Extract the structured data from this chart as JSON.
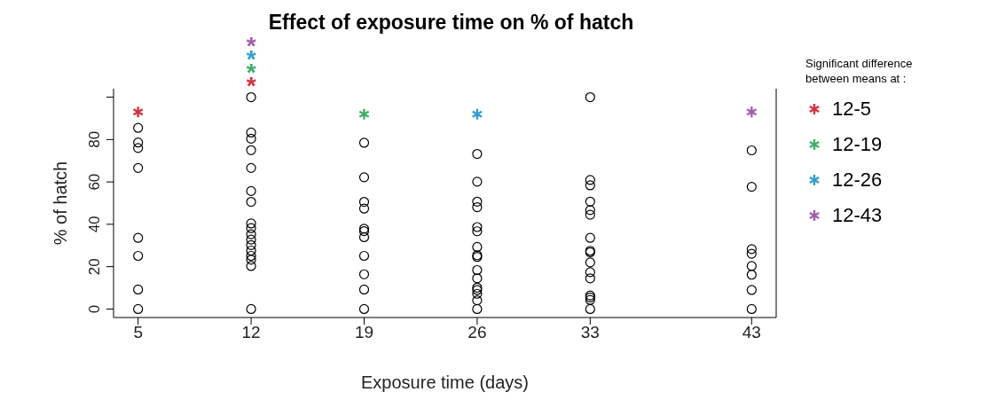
{
  "chart_data": {
    "type": "scatter",
    "title": "Effect of exposure time on % of hatch",
    "xlabel": "Exposure time (days)",
    "ylabel": "% of hatch",
    "legend_title": "Significant difference between means at :",
    "legend": "right",
    "grid": false,
    "xlim": [
      3.48,
      44.52
    ],
    "xticks": [
      5,
      12,
      19,
      26,
      33,
      43
    ],
    "ylim": [
      -4,
      104
    ],
    "yticks": [
      0,
      20,
      40,
      60,
      80,
      {
        "value": 100,
        "label": null
      }
    ],
    "series": [
      {
        "color": "#000000",
        "marker": "circle",
        "x": [
          5,
          5,
          5,
          5,
          5,
          5,
          5,
          5,
          12,
          12,
          12,
          12,
          12,
          12,
          12,
          12,
          12,
          12,
          12,
          12,
          12,
          12,
          12,
          12,
          12,
          19,
          19,
          19,
          19,
          19,
          19,
          19,
          19,
          19,
          19,
          19,
          26,
          26,
          26,
          26,
          26,
          26,
          26,
          26,
          26,
          26,
          26,
          26,
          26,
          26,
          26,
          26,
          33,
          33,
          33,
          33,
          33,
          33,
          33,
          33,
          33,
          33,
          33,
          33,
          33,
          33,
          33,
          33,
          43,
          43,
          43,
          43,
          43,
          43,
          43,
          43
        ],
        "values": [
          85.5,
          78.6,
          76,
          66.6,
          33.6,
          25.1,
          9.2,
          0,
          100,
          83.3,
          80.4,
          75,
          66.6,
          55.7,
          50.6,
          40.4,
          38.2,
          35.3,
          32.8,
          30.2,
          27.6,
          25.1,
          23.3,
          20.3,
          0,
          78.5,
          62.2,
          50.6,
          47.4,
          37.9,
          36.8,
          33.9,
          25.1,
          16.4,
          9.2,
          0,
          73.2,
          60.1,
          50.7,
          48.1,
          38.7,
          36.7,
          29.3,
          25.4,
          24.6,
          18.4,
          14.5,
          10.1,
          9,
          7.2,
          4.1,
          0,
          100,
          60.9,
          58.4,
          50.7,
          46.7,
          44.5,
          33.6,
          27.5,
          26.8,
          22,
          17.4,
          14.5,
          6.4,
          5.5,
          4.3,
          0,
          74.9,
          57.7,
          28.3,
          26.1,
          20.3,
          16.2,
          9,
          0
        ]
      },
      {
        "name": "12-5",
        "color": "#d9303e",
        "marker": "cross",
        "x": [
          5
        ],
        "values": [
          93
        ]
      },
      {
        "name": "12-19",
        "color": "#3cb06a",
        "marker": "cross",
        "x": [
          19
        ],
        "values": [
          92
        ]
      },
      {
        "name": "12-26",
        "color": "#2f9fd6",
        "marker": "cross",
        "x": [
          26
        ],
        "values": [
          92
        ]
      },
      {
        "name": "12-43",
        "color": "#a45bb0",
        "marker": "cross",
        "x": [
          43
        ],
        "values": [
          93
        ]
      }
    ],
    "annotations": [
      "*",
      "*",
      "*",
      "*"
    ]
  }
}
